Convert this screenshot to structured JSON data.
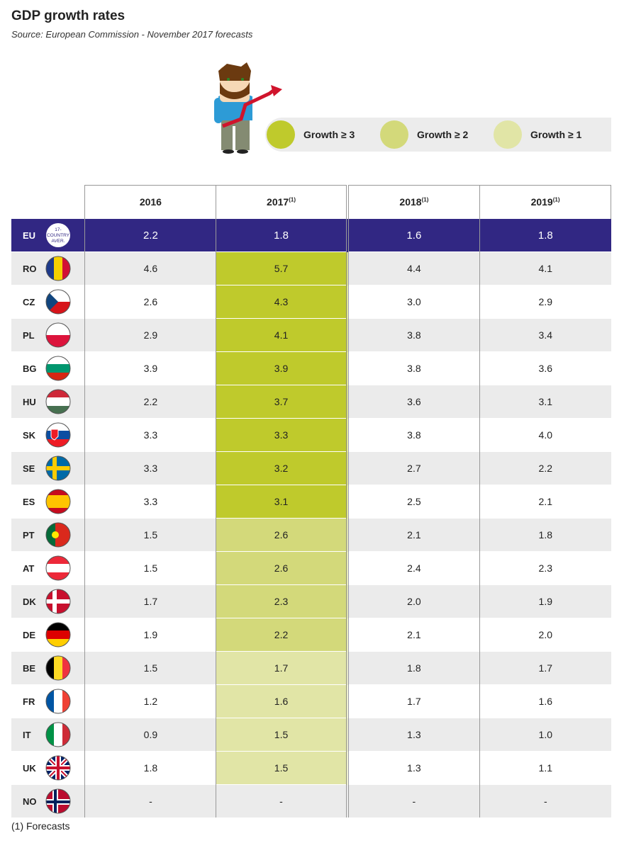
{
  "header": {
    "title": "GDP growth rates",
    "source": "Source: European Commission - November 2017 forecasts"
  },
  "legend": [
    {
      "label": "Growth ≥ 3",
      "color": "#bfca2c"
    },
    {
      "label": "Growth ≥ 2",
      "color": "#d3d97a"
    },
    {
      "label": "Growth ≥ 1",
      "color": "#e1e5a6"
    }
  ],
  "columns": [
    {
      "year": "2016",
      "note": ""
    },
    {
      "year": "2017",
      "note": "(1)"
    },
    {
      "year": "2018",
      "note": "(1)"
    },
    {
      "year": "2019",
      "note": "(1)"
    }
  ],
  "eu": {
    "code": "EU",
    "badge": [
      "17-",
      "COUNTRY",
      "AVER."
    ],
    "values": [
      "2.2",
      "1.8",
      "1.6",
      "1.8"
    ]
  },
  "rows": [
    {
      "code": "RO",
      "flag": "ro-flag-icon",
      "values": [
        "4.6",
        "5.7",
        "4.4",
        "4.1"
      ]
    },
    {
      "code": "CZ",
      "flag": "cz-flag-icon",
      "values": [
        "2.6",
        "4.3",
        "3.0",
        "2.9"
      ]
    },
    {
      "code": "PL",
      "flag": "pl-flag-icon",
      "values": [
        "2.9",
        "4.1",
        "3.8",
        "3.4"
      ]
    },
    {
      "code": "BG",
      "flag": "bg-flag-icon",
      "values": [
        "3.9",
        "3.9",
        "3.8",
        "3.6"
      ]
    },
    {
      "code": "HU",
      "flag": "hu-flag-icon",
      "values": [
        "2.2",
        "3.7",
        "3.6",
        "3.1"
      ]
    },
    {
      "code": "SK",
      "flag": "sk-flag-icon",
      "values": [
        "3.3",
        "3.3",
        "3.8",
        "4.0"
      ]
    },
    {
      "code": "SE",
      "flag": "se-flag-icon",
      "values": [
        "3.3",
        "3.2",
        "2.7",
        "2.2"
      ]
    },
    {
      "code": "ES",
      "flag": "es-flag-icon",
      "values": [
        "3.3",
        "3.1",
        "2.5",
        "2.1"
      ]
    },
    {
      "code": "PT",
      "flag": "pt-flag-icon",
      "values": [
        "1.5",
        "2.6",
        "2.1",
        "1.8"
      ]
    },
    {
      "code": "AT",
      "flag": "at-flag-icon",
      "values": [
        "1.5",
        "2.6",
        "2.4",
        "2.3"
      ]
    },
    {
      "code": "DK",
      "flag": "dk-flag-icon",
      "values": [
        "1.7",
        "2.3",
        "2.0",
        "1.9"
      ]
    },
    {
      "code": "DE",
      "flag": "de-flag-icon",
      "values": [
        "1.9",
        "2.2",
        "2.1",
        "2.0"
      ]
    },
    {
      "code": "BE",
      "flag": "be-flag-icon",
      "values": [
        "1.5",
        "1.7",
        "1.8",
        "1.7"
      ]
    },
    {
      "code": "FR",
      "flag": "fr-flag-icon",
      "values": [
        "1.2",
        "1.6",
        "1.7",
        "1.6"
      ]
    },
    {
      "code": "IT",
      "flag": "it-flag-icon",
      "values": [
        "0.9",
        "1.5",
        "1.3",
        "1.0"
      ]
    },
    {
      "code": "UK",
      "flag": "uk-flag-icon",
      "values": [
        "1.8",
        "1.5",
        "1.3",
        "1.1"
      ]
    },
    {
      "code": "NO",
      "flag": "no-flag-icon",
      "values": [
        "-",
        "-",
        "-",
        "-"
      ]
    }
  ],
  "footnote": "(1) Forecasts",
  "colors": {
    "eu_row": "#312783",
    "alt_row": "#ebebeb"
  }
}
